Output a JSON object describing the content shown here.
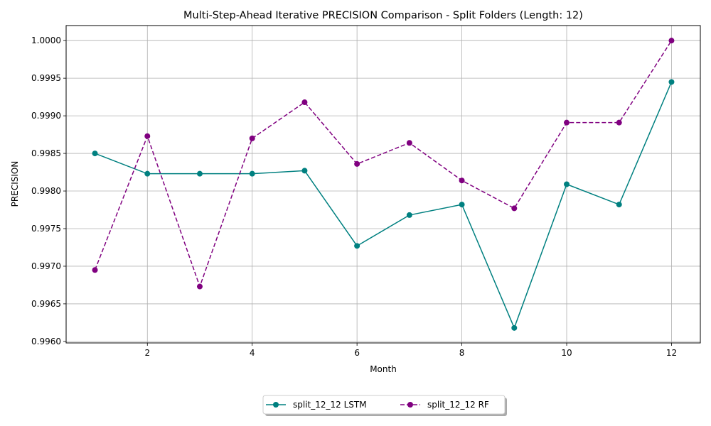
{
  "chart_data": {
    "type": "line",
    "title": "Multi-Step-Ahead Iterative PRECISION Comparison - Split Folders (Length: 12)",
    "xlabel": "Month",
    "ylabel": "PRECISION",
    "xlim": [
      0.45,
      12.55
    ],
    "ylim": [
      0.99598,
      1.0002
    ],
    "x_ticks": [
      2,
      4,
      6,
      8,
      10,
      12
    ],
    "y_ticks": [
      0.996,
      0.9965,
      0.997,
      0.9975,
      0.998,
      0.9985,
      0.999,
      0.9995,
      1.0
    ],
    "y_tick_labels": [
      "0.9960",
      "0.9965",
      "0.9970",
      "0.9975",
      "0.9980",
      "0.9985",
      "0.9990",
      "0.9995",
      "1.0000"
    ],
    "grid": true,
    "legend_position": "bottom-center, below plot",
    "x": [
      1,
      2,
      3,
      4,
      5,
      6,
      7,
      8,
      9,
      10,
      11,
      12
    ],
    "series": [
      {
        "name": "split_12_12 LSTM",
        "color": "#008080",
        "line_style": "solid",
        "marker": "circle",
        "values": [
          0.9985,
          0.99823,
          0.99823,
          0.99823,
          0.99827,
          0.99727,
          0.99768,
          0.99782,
          0.99618,
          0.99809,
          0.99782,
          0.99945
        ]
      },
      {
        "name": "split_12_12 RF",
        "color": "#800080",
        "line_style": "dashed",
        "marker": "circle",
        "values": [
          0.99695,
          0.99873,
          0.99673,
          0.9987,
          0.99918,
          0.99836,
          0.99864,
          0.99814,
          0.99777,
          0.99891,
          0.99891,
          1.0
        ]
      }
    ]
  }
}
